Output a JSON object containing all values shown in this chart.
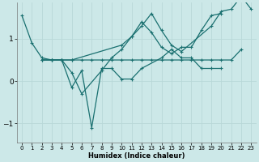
{
  "background_color": "#cce8e8",
  "grid_color": "#b8d8d8",
  "line_color": "#1a7070",
  "xlabel": "Humidex (Indice chaleur)",
  "xlim": [
    -0.5,
    23.5
  ],
  "ylim": [
    -1.45,
    1.85
  ],
  "yticks": [
    -1,
    0,
    1
  ],
  "xticks": [
    0,
    1,
    2,
    3,
    4,
    5,
    6,
    7,
    8,
    9,
    10,
    11,
    12,
    13,
    14,
    15,
    16,
    17,
    18,
    19,
    20,
    21,
    22,
    23
  ],
  "series": [
    {
      "x": [
        0,
        1,
        2,
        3,
        4,
        5,
        10,
        11,
        12,
        13,
        14,
        15,
        16,
        19,
        20,
        21,
        22,
        23
      ],
      "y": [
        1.55,
        0.9,
        0.55,
        0.5,
        0.5,
        0.5,
        0.85,
        1.05,
        1.3,
        1.6,
        1.2,
        0.85,
        0.7,
        1.3,
        1.65,
        1.7,
        2.0,
        1.7
      ]
    },
    {
      "x": [
        2,
        3,
        4,
        5,
        6,
        7,
        8,
        9,
        10,
        11,
        12,
        13,
        14,
        15,
        16,
        17,
        18,
        19,
        20,
        21,
        22
      ],
      "y": [
        0.5,
        0.5,
        0.5,
        0.5,
        0.5,
        0.5,
        0.5,
        0.5,
        0.5,
        0.5,
        0.5,
        0.5,
        0.5,
        0.5,
        0.5,
        0.5,
        0.5,
        0.5,
        0.5,
        0.5,
        0.75
      ]
    },
    {
      "x": [
        2,
        3,
        4,
        5,
        6,
        7,
        8,
        9,
        10,
        11,
        12,
        14,
        15,
        16,
        17,
        18,
        19,
        20
      ],
      "y": [
        0.5,
        0.5,
        0.5,
        -0.15,
        0.25,
        -1.1,
        0.3,
        0.3,
        0.05,
        0.05,
        0.3,
        0.55,
        0.75,
        0.55,
        0.55,
        0.3,
        0.3,
        0.3
      ]
    },
    {
      "x": [
        2,
        3,
        4,
        5,
        6,
        8,
        9,
        10,
        11,
        12,
        13,
        14,
        15,
        16,
        17,
        18,
        19,
        20
      ],
      "y": [
        0.5,
        0.5,
        0.5,
        0.2,
        -0.3,
        0.25,
        0.55,
        0.75,
        1.05,
        1.4,
        1.15,
        0.8,
        0.65,
        0.8,
        0.8,
        1.2,
        1.55,
        1.6
      ]
    }
  ]
}
